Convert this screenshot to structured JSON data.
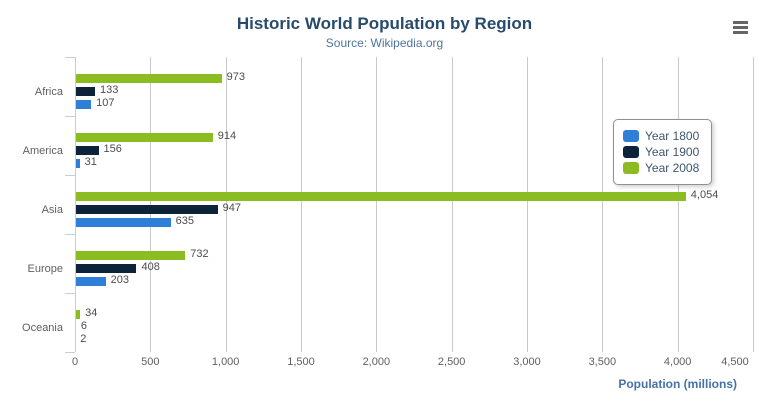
{
  "header": {
    "title": "Historic World Population by Region",
    "subtitle": "Source: Wikipedia.org"
  },
  "menu": {
    "icon": "hamburger-export-menu-icon"
  },
  "x_axis": {
    "title": "Population (millions)",
    "tick_labels": [
      "0",
      "500",
      "1,000",
      "1,500",
      "2,000",
      "2,500",
      "3,000",
      "3,500",
      "4,000",
      "4,500"
    ],
    "tick_values": [
      0,
      500,
      1000,
      1500,
      2000,
      2500,
      3000,
      3500,
      4000,
      4500
    ]
  },
  "chart_data": {
    "type": "bar",
    "orientation": "horizontal",
    "title": "Historic World Population by Region",
    "subtitle": "Source: Wikipedia.org",
    "categories": [
      "Africa",
      "America",
      "Asia",
      "Europe",
      "Oceania"
    ],
    "series": [
      {
        "name": "Year 1800",
        "color": "#2f7ed8",
        "values": [
          107,
          31,
          635,
          203,
          2
        ]
      },
      {
        "name": "Year 1900",
        "color": "#0d233a",
        "values": [
          133,
          156,
          947,
          408,
          6
        ]
      },
      {
        "name": "Year 2008",
        "color": "#8bbc21",
        "values": [
          973,
          914,
          4054,
          732,
          34
        ]
      }
    ],
    "bar_order_top_to_bottom": [
      "Year 2008",
      "Year 1900",
      "Year 1800"
    ],
    "data_labels": true,
    "data_label_format": "thousands-comma",
    "xlabel": "Population (millions)",
    "ylabel": "",
    "xlim": [
      0,
      4500
    ],
    "grid": true,
    "gridline_step": 500,
    "legend_position": "right",
    "legend_entries": [
      "Year 1800",
      "Year 1900",
      "Year 2008"
    ]
  },
  "colors": {
    "title": "#274b6d",
    "subtitle": "#4d759e",
    "axis_title": "#4572a7",
    "tick_label": "#606060",
    "gridline": "#c9c9c9",
    "axis_line": "#c0d0e0",
    "series_1800": "#2f7ed8",
    "series_1900": "#0d233a",
    "series_2008": "#8bbc21"
  }
}
